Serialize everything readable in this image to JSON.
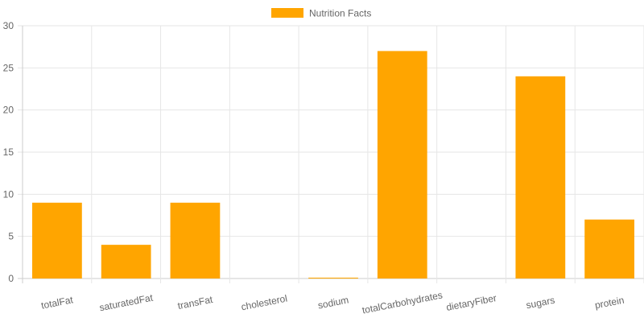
{
  "chart_data": {
    "type": "bar",
    "categories": [
      "totalFat",
      "saturatedFat",
      "transFat",
      "cholesterol",
      "sodium",
      "totalCarbohydrates",
      "dietaryFiber",
      "sugars",
      "protein"
    ],
    "series": [
      {
        "name": "Nutrition Facts",
        "values": [
          9,
          4,
          9,
          0,
          0.1,
          27,
          0,
          24,
          7
        ]
      }
    ],
    "ylim": [
      0,
      30
    ],
    "yticks": [
      0,
      5,
      10,
      15,
      20,
      25,
      30
    ],
    "grid": true,
    "legend": "top-center",
    "colors": {
      "bar": "#FFA500",
      "grid": "#e6e6e6",
      "axis": "#cccccc",
      "text": "#666666"
    }
  }
}
